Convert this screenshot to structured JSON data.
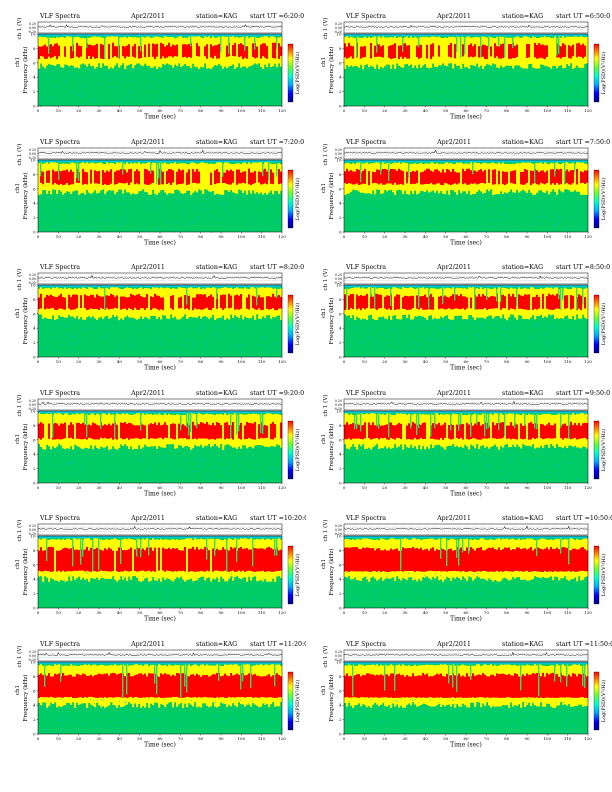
{
  "page": {
    "header_left": "VLF Spectra",
    "date": "Apr2/2011",
    "station": "station=KAG",
    "start_prefix": "start  UT"
  },
  "colors": {
    "background": "#00c8d8",
    "low": "#00cc66",
    "mid": "#33dd66",
    "high": "#ffff00",
    "peak": "#ff0000",
    "speckle": "#00aaff",
    "trace": "#000000"
  },
  "labels": {
    "ch_label": "ch 1 (V)",
    "ch1": "ch1",
    "ylabel": "Frequency  (kHz)",
    "xlabel": "Time  (sec)",
    "colorbar_label": "Log(PSD)(V²/Hz)"
  },
  "chart_data": [
    {
      "type": "heatmap",
      "title": "VLF Spectra",
      "date": "Apr2/2011",
      "station": "station=KAG",
      "start_ut": "6:20:0",
      "xlabel": "Time  (sec)",
      "ylabel": "Frequency  (kHz)",
      "x_ticks": [
        "0",
        "10",
        "20",
        "30",
        "40",
        "50",
        "60",
        "70",
        "80",
        "90",
        "100",
        "110",
        "120"
      ],
      "y_ticks": [
        "0",
        "2",
        "4",
        "6",
        "8",
        "10"
      ],
      "xlim": [
        0,
        120
      ],
      "ylim": [
        0,
        10
      ],
      "voltage_ticks": [
        "0.20",
        "0.00",
        "-0.20"
      ],
      "colorbar_label": "Log(PSD)(V²/Hz)",
      "band_top_khz": 9.7,
      "red_band_khz": [
        6.5,
        8.8
      ],
      "red_intensity": 0.45
    },
    {
      "type": "heatmap",
      "title": "VLF Spectra",
      "date": "Apr2/2011",
      "station": "station=KAG",
      "start_ut": "6:50:0",
      "xlabel": "Time  (sec)",
      "ylabel": "Frequency  (kHz)",
      "x_ticks": [
        "0",
        "10",
        "20",
        "30",
        "40",
        "50",
        "60",
        "70",
        "80",
        "90",
        "100",
        "110",
        "120"
      ],
      "y_ticks": [
        "0",
        "2",
        "4",
        "6",
        "8",
        "10"
      ],
      "xlim": [
        0,
        120
      ],
      "ylim": [
        0,
        10
      ],
      "voltage_ticks": [
        "0.20",
        "0.00",
        "-0.20"
      ],
      "colorbar_label": "Log(PSD)(V²/Hz)",
      "band_top_khz": 9.7,
      "red_band_khz": [
        6.5,
        8.8
      ],
      "red_intensity": 0.5
    },
    {
      "type": "heatmap",
      "title": "VLF Spectra",
      "date": "Apr2/2011",
      "station": "station=KAG",
      "start_ut": "7:20:0",
      "xlabel": "Time  (sec)",
      "ylabel": "Frequency  (kHz)",
      "x_ticks": [
        "0",
        "10",
        "20",
        "30",
        "40",
        "50",
        "60",
        "70",
        "80",
        "90",
        "100",
        "110",
        "120"
      ],
      "y_ticks": [
        "0",
        "2",
        "4",
        "6",
        "8",
        "10"
      ],
      "xlim": [
        0,
        120
      ],
      "ylim": [
        0,
        10
      ],
      "voltage_ticks": [
        "0.20",
        "0.00",
        "-0.20"
      ],
      "colorbar_label": "Log(PSD)(V²/Hz)",
      "band_top_khz": 9.7,
      "red_band_khz": [
        6.5,
        8.8
      ],
      "red_intensity": 0.55
    },
    {
      "type": "heatmap",
      "title": "VLF Spectra",
      "date": "Apr2/2011",
      "station": "station=KAG",
      "start_ut": "7:50:0",
      "xlabel": "Time  (sec)",
      "ylabel": "Frequency  (kHz)",
      "x_ticks": [
        "0",
        "10",
        "20",
        "30",
        "40",
        "50",
        "60",
        "70",
        "80",
        "90",
        "100",
        "110",
        "120"
      ],
      "y_ticks": [
        "0",
        "2",
        "4",
        "6",
        "8",
        "10"
      ],
      "xlim": [
        0,
        120
      ],
      "ylim": [
        0,
        10
      ],
      "voltage_ticks": [
        "0.20",
        "0.00",
        "-0.20"
      ],
      "colorbar_label": "Log(PSD)(V²/Hz)",
      "band_top_khz": 9.7,
      "red_band_khz": [
        6.5,
        8.8
      ],
      "red_intensity": 0.6
    },
    {
      "type": "heatmap",
      "title": "VLF Spectra",
      "date": "Apr2/2011",
      "station": "station=KAG",
      "start_ut": "8:20:0",
      "xlabel": "Time  (sec)",
      "ylabel": "Frequency  (kHz)",
      "x_ticks": [
        "0",
        "10",
        "20",
        "30",
        "40",
        "50",
        "60",
        "70",
        "80",
        "90",
        "100",
        "110",
        "120"
      ],
      "y_ticks": [
        "0",
        "2",
        "4",
        "6",
        "8",
        "10"
      ],
      "xlim": [
        0,
        120
      ],
      "ylim": [
        0,
        10
      ],
      "voltage_ticks": [
        "0.20",
        "0.00",
        "-0.20"
      ],
      "colorbar_label": "Log(PSD)(V²/Hz)",
      "band_top_khz": 9.7,
      "red_band_khz": [
        6.5,
        8.8
      ],
      "red_intensity": 0.6
    },
    {
      "type": "heatmap",
      "title": "VLF Spectra",
      "date": "Apr2/2011",
      "station": "station=KAG",
      "start_ut": "8:50:0",
      "xlabel": "Time  (sec)",
      "ylabel": "Frequency  (kHz)",
      "x_ticks": [
        "0",
        "10",
        "20",
        "30",
        "40",
        "50",
        "60",
        "70",
        "80",
        "90",
        "100",
        "110",
        "120"
      ],
      "y_ticks": [
        "0",
        "2",
        "4",
        "6",
        "8",
        "10"
      ],
      "xlim": [
        0,
        120
      ],
      "ylim": [
        0,
        10
      ],
      "voltage_ticks": [
        "0.20",
        "0.00",
        "-0.20"
      ],
      "colorbar_label": "Log(PSD)(V²/Hz)",
      "band_top_khz": 9.7,
      "red_band_khz": [
        6.5,
        8.8
      ],
      "red_intensity": 0.62
    },
    {
      "type": "heatmap",
      "title": "VLF Spectra",
      "date": "Apr2/2011",
      "station": "station=KAG",
      "start_ut": "9:20:0",
      "xlabel": "Time  (sec)",
      "ylabel": "Frequency  (kHz)",
      "x_ticks": [
        "0",
        "10",
        "20",
        "30",
        "40",
        "50",
        "60",
        "70",
        "80",
        "90",
        "100",
        "110",
        "120"
      ],
      "y_ticks": [
        "0",
        "2",
        "4",
        "6",
        "8",
        "10"
      ],
      "xlim": [
        0,
        120
      ],
      "ylim": [
        0,
        10
      ],
      "voltage_ticks": [
        "0.20",
        "0.00",
        "-0.20"
      ],
      "colorbar_label": "Log(PSD)(V²/Hz)",
      "band_top_khz": 9.7,
      "red_band_khz": [
        6.0,
        8.5
      ],
      "red_intensity": 0.65
    },
    {
      "type": "heatmap",
      "title": "VLF Spectra",
      "date": "Apr2/2011",
      "station": "station=KAG",
      "start_ut": "9:50:0",
      "xlabel": "Time  (sec)",
      "ylabel": "Frequency  (kHz)",
      "x_ticks": [
        "0",
        "10",
        "20",
        "30",
        "40",
        "50",
        "60",
        "70",
        "80",
        "90",
        "100",
        "110",
        "120"
      ],
      "y_ticks": [
        "0",
        "2",
        "4",
        "6",
        "8",
        "10"
      ],
      "xlim": [
        0,
        120
      ],
      "ylim": [
        0,
        10
      ],
      "voltage_ticks": [
        "0.20",
        "0.00",
        "-0.20"
      ],
      "colorbar_label": "Log(PSD)(V²/Hz)",
      "band_top_khz": 9.7,
      "red_band_khz": [
        6.0,
        8.5
      ],
      "red_intensity": 0.65
    },
    {
      "type": "heatmap",
      "title": "VLF Spectra",
      "date": "Apr2/2011",
      "station": "station=KAG",
      "start_ut": "10:20:0",
      "xlabel": "Time  (sec)",
      "ylabel": "Frequency  (kHz)",
      "x_ticks": [
        "0",
        "10",
        "20",
        "30",
        "40",
        "50",
        "60",
        "70",
        "80",
        "90",
        "100",
        "110",
        "120"
      ],
      "y_ticks": [
        "0",
        "2",
        "4",
        "6",
        "8",
        "10"
      ],
      "xlim": [
        0,
        120
      ],
      "ylim": [
        0,
        10
      ],
      "voltage_ticks": [
        "0.20",
        "0.00",
        "-0.20"
      ],
      "colorbar_label": "Log(PSD)(V²/Hz)",
      "band_top_khz": 9.7,
      "red_band_khz": [
        5.0,
        8.5
      ],
      "red_intensity": 0.75
    },
    {
      "type": "heatmap",
      "title": "VLF Spectra",
      "date": "Apr2/2011",
      "station": "station=KAG",
      "start_ut": "10:50:0",
      "xlabel": "Time  (sec)",
      "ylabel": "Frequency  (kHz)",
      "x_ticks": [
        "0",
        "10",
        "20",
        "30",
        "40",
        "50",
        "60",
        "70",
        "80",
        "90",
        "100",
        "110",
        "120"
      ],
      "y_ticks": [
        "0",
        "2",
        "4",
        "6",
        "8",
        "10"
      ],
      "xlim": [
        0,
        120
      ],
      "ylim": [
        0,
        10
      ],
      "voltage_ticks": [
        "0.20",
        "0.00",
        "-0.20"
      ],
      "colorbar_label": "Log(PSD)(V²/Hz)",
      "band_top_khz": 9.7,
      "red_band_khz": [
        5.0,
        8.5
      ],
      "red_intensity": 0.8
    },
    {
      "type": "heatmap",
      "title": "VLF Spectra",
      "date": "Apr2/2011",
      "station": "station=KAG",
      "start_ut": "11:20:0",
      "xlabel": "Time  (sec)",
      "ylabel": "Frequency  (kHz)",
      "x_ticks": [
        "0",
        "10",
        "20",
        "30",
        "40",
        "50",
        "60",
        "70",
        "80",
        "90",
        "100",
        "110",
        "120"
      ],
      "y_ticks": [
        "0",
        "2",
        "4",
        "6",
        "8",
        "10"
      ],
      "xlim": [
        0,
        120
      ],
      "ylim": [
        0,
        10
      ],
      "voltage_ticks": [
        "0.20",
        "0.00",
        "-0.20"
      ],
      "colorbar_label": "Log(PSD)(V²/Hz)",
      "band_top_khz": 9.7,
      "red_band_khz": [
        5.0,
        8.5
      ],
      "red_intensity": 0.8
    },
    {
      "type": "heatmap",
      "title": "VLF Spectra",
      "date": "Apr2/2011",
      "station": "station=KAG",
      "start_ut": "11:50:0",
      "xlabel": "Time  (sec)",
      "ylabel": "Frequency  (kHz)",
      "x_ticks": [
        "0",
        "10",
        "20",
        "30",
        "40",
        "50",
        "60",
        "70",
        "80",
        "90",
        "100",
        "110",
        "120"
      ],
      "y_ticks": [
        "0",
        "2",
        "4",
        "6",
        "8",
        "10"
      ],
      "xlim": [
        0,
        120
      ],
      "ylim": [
        0,
        10
      ],
      "voltage_ticks": [
        "0.20",
        "0.00",
        "-0.20"
      ],
      "colorbar_label": "Log(PSD)(V²/Hz)",
      "band_top_khz": 9.7,
      "red_band_khz": [
        5.0,
        8.5
      ],
      "red_intensity": 0.85
    }
  ]
}
